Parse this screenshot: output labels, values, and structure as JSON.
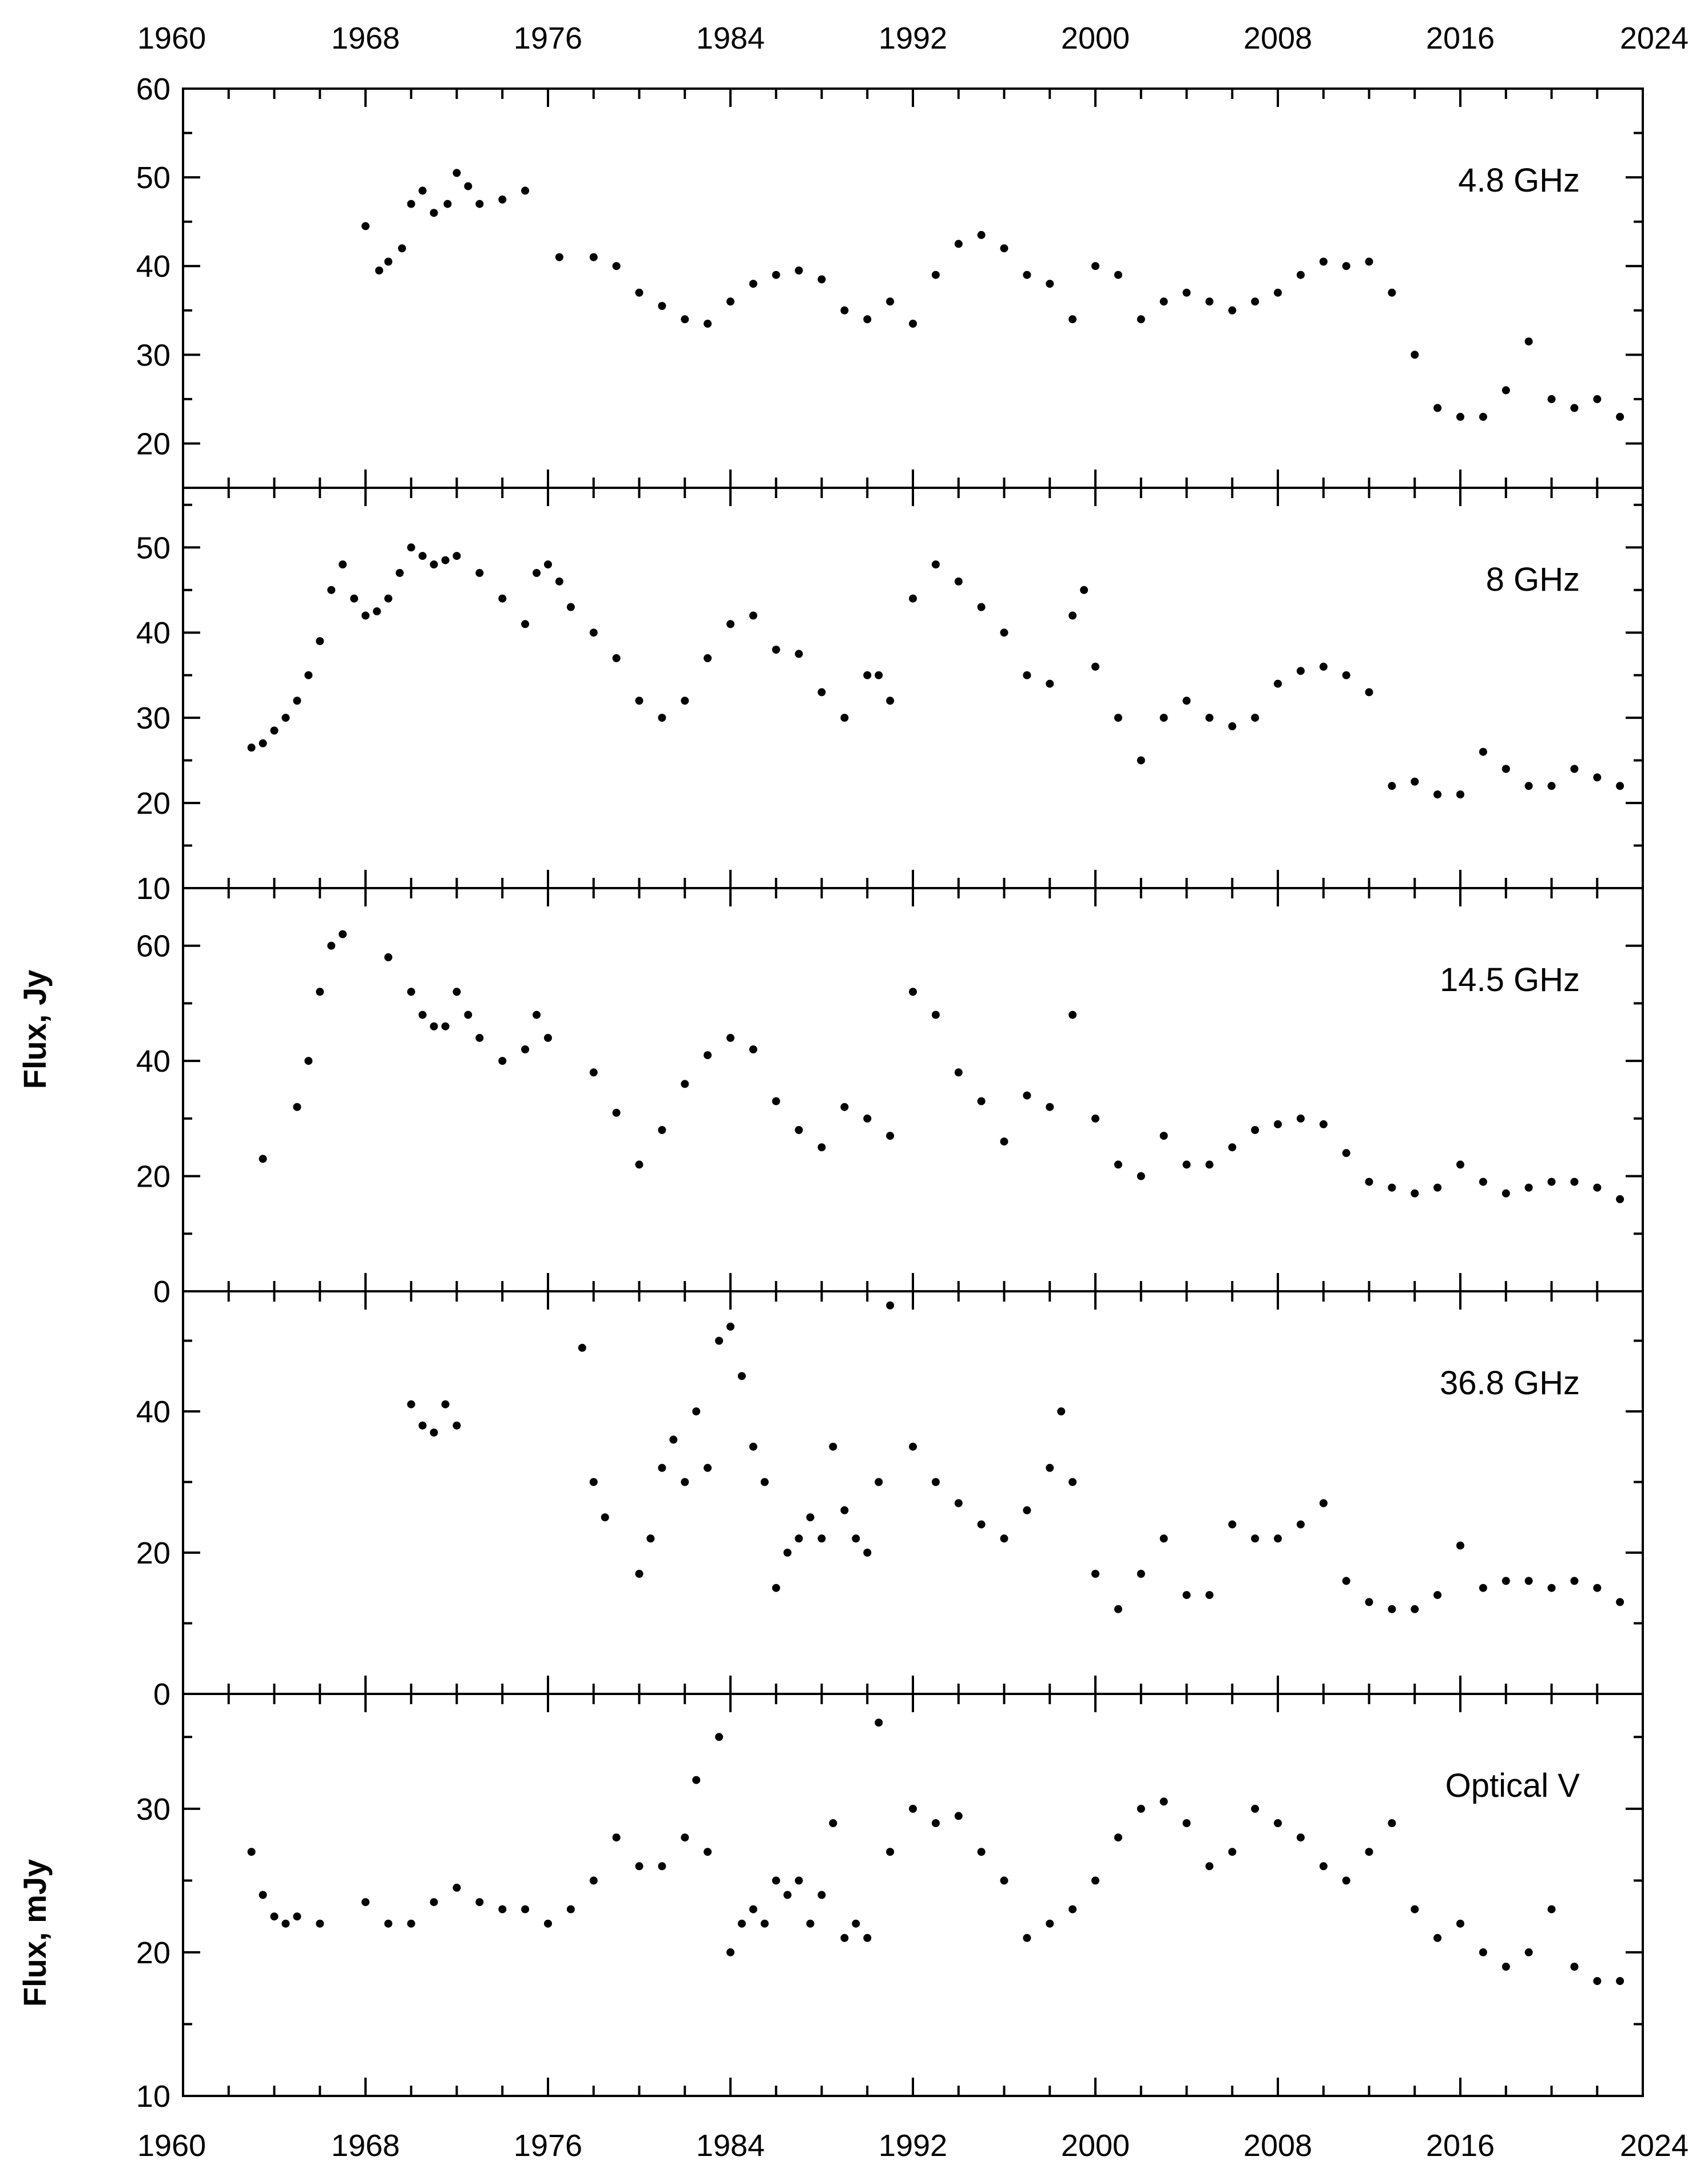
{
  "chart_data": {
    "type": "scatter",
    "layout": "five vertically stacked panels sharing a time axis",
    "x_axis": {
      "label": "",
      "range": [
        1960,
        2024
      ],
      "tick_labels": [
        "1960",
        "1968",
        "1976",
        "1984",
        "1992",
        "2000",
        "2008",
        "2016",
        "2024"
      ],
      "tick_values": [
        1960,
        1968,
        1976,
        1984,
        1992,
        2000,
        2008,
        2016,
        2024
      ],
      "labels_top": true,
      "labels_bottom": true
    },
    "y_axis_labels": [
      {
        "text": "Flux, Jy",
        "panels": [
          0,
          1,
          2,
          3
        ]
      },
      {
        "text": "Flux, mJy",
        "panels": [
          4
        ]
      }
    ],
    "grid": false,
    "marker_color": "#000000",
    "panels": [
      {
        "label": "4.8 GHz",
        "unit": "Jy",
        "ylim": [
          15,
          60
        ],
        "y_tick_labels": [
          "20",
          "30",
          "40",
          "50",
          "60"
        ],
        "y_ticks": [
          20,
          30,
          40,
          50,
          60
        ],
        "series": [
          {
            "x": [
              1968.0,
              1968.6,
              1969.0,
              1969.6,
              1970.0,
              1970.5,
              1971.0,
              1971.6,
              1972.0,
              1972.5,
              1973.0,
              1974.0,
              1975.0,
              1976.5,
              1978.0,
              1979.0,
              1980.0,
              1981.0,
              1982.0,
              1983.0,
              1984.0,
              1985.0,
              1986.0,
              1987.0,
              1988.0,
              1989.0,
              1990.0,
              1991.0,
              1992.0,
              1993.0,
              1994.0,
              1995.0,
              1996.0,
              1997.0,
              1998.0,
              1999.0,
              2000.0,
              2001.0,
              2002.0,
              2003.0,
              2004.0,
              2005.0,
              2006.0,
              2007.0,
              2008.0,
              2009.0,
              2010.0,
              2011.0,
              2012.0,
              2013.0,
              2014.0,
              2015.0,
              2016.0,
              2017.0,
              2018.0,
              2019.0,
              2020.0,
              2021.0,
              2022.0,
              2023.0
            ],
            "y": [
              44.5,
              39.5,
              40.5,
              42.0,
              47.0,
              48.5,
              46.0,
              47.0,
              50.5,
              49.0,
              47.0,
              47.5,
              48.5,
              41.0,
              41.0,
              40.0,
              37.0,
              35.5,
              34.0,
              33.5,
              36.0,
              38.0,
              39.0,
              39.5,
              38.5,
              35.0,
              34.0,
              36.0,
              33.5,
              39.0,
              42.5,
              43.5,
              42.0,
              39.0,
              38.0,
              34.0,
              40.0,
              39.0,
              34.0,
              36.0,
              37.0,
              36.0,
              35.0,
              36.0,
              37.0,
              39.0,
              40.5,
              40.0,
              40.5,
              37.0,
              30.0,
              24.0,
              23.0,
              23.0,
              26.0,
              31.5,
              25.0,
              24.0,
              25.0,
              23.0
            ]
          }
        ]
      },
      {
        "label": "8 GHz",
        "unit": "Jy",
        "ylim": [
          10,
          57
        ],
        "y_tick_labels": [
          "10",
          "20",
          "30",
          "40",
          "50"
        ],
        "y_ticks": [
          10,
          20,
          30,
          40,
          50
        ],
        "series": [
          {
            "x": [
              1963.0,
              1963.5,
              1964.0,
              1964.5,
              1965.0,
              1965.5,
              1966.0,
              1966.5,
              1967.0,
              1967.5,
              1968.0,
              1968.5,
              1969.0,
              1969.5,
              1970.0,
              1970.5,
              1971.0,
              1971.5,
              1972.0,
              1973.0,
              1974.0,
              1975.0,
              1975.5,
              1976.0,
              1976.5,
              1977.0,
              1978.0,
              1979.0,
              1980.0,
              1981.0,
              1982.0,
              1983.0,
              1984.0,
              1985.0,
              1986.0,
              1987.0,
              1988.0,
              1989.0,
              1990.0,
              1990.5,
              1991.0,
              1992.0,
              1993.0,
              1994.0,
              1995.0,
              1996.0,
              1997.0,
              1998.0,
              1999.0,
              1999.5,
              2000.0,
              2001.0,
              2002.0,
              2003.0,
              2004.0,
              2005.0,
              2006.0,
              2007.0,
              2008.0,
              2009.0,
              2010.0,
              2011.0,
              2012.0,
              2013.0,
              2014.0,
              2015.0,
              2016.0,
              2017.0,
              2018.0,
              2019.0,
              2020.0,
              2021.0,
              2022.0,
              2023.0
            ],
            "y": [
              26.5,
              27.0,
              28.5,
              30.0,
              32.0,
              35.0,
              39.0,
              45.0,
              48.0,
              44.0,
              42.0,
              42.5,
              44.0,
              47.0,
              50.0,
              49.0,
              48.0,
              48.5,
              49.0,
              47.0,
              44.0,
              41.0,
              47.0,
              48.0,
              46.0,
              43.0,
              40.0,
              37.0,
              32.0,
              30.0,
              32.0,
              37.0,
              41.0,
              42.0,
              38.0,
              37.5,
              33.0,
              30.0,
              35.0,
              35.0,
              32.0,
              44.0,
              48.0,
              46.0,
              43.0,
              40.0,
              35.0,
              34.0,
              42.0,
              45.0,
              36.0,
              30.0,
              25.0,
              30.0,
              32.0,
              30.0,
              29.0,
              30.0,
              34.0,
              35.5,
              36.0,
              35.0,
              33.0,
              22.0,
              22.5,
              21.0,
              21.0,
              26.0,
              24.0,
              22.0,
              22.0,
              24.0,
              23.0,
              22.0
            ]
          }
        ]
      },
      {
        "label": "14.5 GHz",
        "unit": "Jy",
        "ylim": [
          0,
          70
        ],
        "y_tick_labels": [
          "0",
          "20",
          "40",
          "60"
        ],
        "y_ticks": [
          0,
          20,
          40,
          60
        ],
        "series": [
          {
            "x": [
              1963.5,
              1965.0,
              1965.5,
              1966.0,
              1966.5,
              1967.0,
              1969.0,
              1970.0,
              1970.5,
              1971.0,
              1971.5,
              1972.0,
              1972.5,
              1973.0,
              1974.0,
              1975.0,
              1975.5,
              1976.0,
              1978.0,
              1979.0,
              1980.0,
              1981.0,
              1982.0,
              1983.0,
              1984.0,
              1985.0,
              1986.0,
              1987.0,
              1988.0,
              1989.0,
              1990.0,
              1991.0,
              1992.0,
              1993.0,
              1994.0,
              1995.0,
              1996.0,
              1997.0,
              1998.0,
              1999.0,
              2000.0,
              2001.0,
              2002.0,
              2003.0,
              2004.0,
              2005.0,
              2006.0,
              2007.0,
              2008.0,
              2009.0,
              2010.0,
              2011.0,
              2012.0,
              2013.0,
              2014.0,
              2015.0,
              2016.0,
              2017.0,
              2018.0,
              2019.0,
              2020.0,
              2021.0,
              2022.0,
              2023.0
            ],
            "y": [
              23.0,
              32.0,
              40.0,
              52.0,
              60.0,
              62.0,
              58.0,
              52.0,
              48.0,
              46.0,
              46.0,
              52.0,
              48.0,
              44.0,
              40.0,
              42.0,
              48.0,
              44.0,
              38.0,
              31.0,
              22.0,
              28.0,
              36.0,
              41.0,
              44.0,
              42.0,
              33.0,
              28.0,
              25.0,
              32.0,
              30.0,
              27.0,
              52.0,
              48.0,
              38.0,
              33.0,
              26.0,
              34.0,
              32.0,
              48.0,
              30.0,
              22.0,
              20.0,
              27.0,
              22.0,
              22.0,
              25.0,
              28.0,
              29.0,
              30.0,
              29.0,
              24.0,
              19.0,
              18.0,
              17.0,
              18.0,
              22.0,
              19.0,
              17.0,
              18.0,
              19.0,
              19.0,
              18.0,
              16.0
            ]
          }
        ]
      },
      {
        "label": "36.8 GHz",
        "unit": "Jy",
        "ylim": [
          0,
          57
        ],
        "y_tick_labels": [
          "0",
          "20",
          "40"
        ],
        "y_ticks": [
          0,
          20,
          40
        ],
        "series": [
          {
            "x": [
              1970.0,
              1970.5,
              1971.0,
              1971.5,
              1972.0,
              1977.5,
              1978.0,
              1978.5,
              1980.0,
              1980.5,
              1981.0,
              1981.5,
              1982.0,
              1982.5,
              1983.0,
              1983.5,
              1984.0,
              1984.5,
              1985.0,
              1985.5,
              1986.0,
              1986.5,
              1987.0,
              1987.5,
              1988.0,
              1988.5,
              1989.0,
              1989.5,
              1990.0,
              1990.5,
              1991.0,
              1992.0,
              1993.0,
              1994.0,
              1995.0,
              1996.0,
              1997.0,
              1998.0,
              1998.5,
              1999.0,
              2000.0,
              2001.0,
              2002.0,
              2003.0,
              2004.0,
              2005.0,
              2006.0,
              2007.0,
              2008.0,
              2009.0,
              2010.0,
              2011.0,
              2012.0,
              2013.0,
              2014.0,
              2015.0,
              2016.0,
              2017.0,
              2018.0,
              2019.0,
              2020.0,
              2021.0,
              2022.0,
              2023.0
            ],
            "y": [
              41.0,
              38.0,
              37.0,
              41.0,
              38.0,
              49.0,
              30.0,
              25.0,
              17.0,
              22.0,
              32.0,
              36.0,
              30.0,
              40.0,
              32.0,
              50.0,
              52.0,
              45.0,
              35.0,
              30.0,
              15.0,
              20.0,
              22.0,
              25.0,
              22.0,
              35.0,
              26.0,
              22.0,
              20.0,
              30.0,
              55.0,
              35.0,
              30.0,
              27.0,
              24.0,
              22.0,
              26.0,
              32.0,
              40.0,
              30.0,
              17.0,
              12.0,
              17.0,
              22.0,
              14.0,
              14.0,
              24.0,
              22.0,
              22.0,
              24.0,
              27.0,
              16.0,
              13.0,
              12.0,
              12.0,
              14.0,
              21.0,
              15.0,
              16.0,
              16.0,
              15.0,
              16.0,
              15.0,
              13.0
            ]
          }
        ]
      },
      {
        "label": "Optical V",
        "unit": "mJy",
        "ylim": [
          10,
          38
        ],
        "y_tick_labels": [
          "10",
          "20",
          "30"
        ],
        "y_ticks": [
          10,
          20,
          30
        ],
        "series": [
          {
            "x": [
              1963.0,
              1963.5,
              1964.0,
              1964.5,
              1965.0,
              1966.0,
              1968.0,
              1969.0,
              1970.0,
              1971.0,
              1972.0,
              1973.0,
              1974.0,
              1975.0,
              1976.0,
              1977.0,
              1978.0,
              1979.0,
              1980.0,
              1981.0,
              1982.0,
              1982.5,
              1983.0,
              1983.5,
              1984.0,
              1984.5,
              1985.0,
              1985.5,
              1986.0,
              1986.5,
              1987.0,
              1987.5,
              1988.0,
              1988.5,
              1989.0,
              1989.5,
              1990.0,
              1990.5,
              1991.0,
              1992.0,
              1993.0,
              1994.0,
              1995.0,
              1996.0,
              1997.0,
              1998.0,
              1999.0,
              2000.0,
              2001.0,
              2002.0,
              2003.0,
              2004.0,
              2005.0,
              2006.0,
              2007.0,
              2008.0,
              2009.0,
              2010.0,
              2011.0,
              2012.0,
              2013.0,
              2014.0,
              2015.0,
              2016.0,
              2017.0,
              2018.0,
              2019.0,
              2020.0,
              2021.0,
              2022.0,
              2023.0
            ],
            "y": [
              27.0,
              24.0,
              22.5,
              22.0,
              22.5,
              22.0,
              23.5,
              22.0,
              22.0,
              23.5,
              24.5,
              23.5,
              23.0,
              23.0,
              22.0,
              23.0,
              25.0,
              28.0,
              26.0,
              26.0,
              28.0,
              32.0,
              27.0,
              35.0,
              20.0,
              22.0,
              23.0,
              22.0,
              25.0,
              24.0,
              25.0,
              22.0,
              24.0,
              29.0,
              21.0,
              22.0,
              21.0,
              36.0,
              27.0,
              30.0,
              29.0,
              29.5,
              27.0,
              25.0,
              21.0,
              22.0,
              23.0,
              25.0,
              28.0,
              30.0,
              30.5,
              29.0,
              26.0,
              27.0,
              30.0,
              29.0,
              28.0,
              26.0,
              25.0,
              27.0,
              29.0,
              23.0,
              21.0,
              22.0,
              20.0,
              19.0,
              20.0,
              23.0,
              19.0,
              18.0,
              18.0
            ]
          }
        ]
      }
    ]
  }
}
